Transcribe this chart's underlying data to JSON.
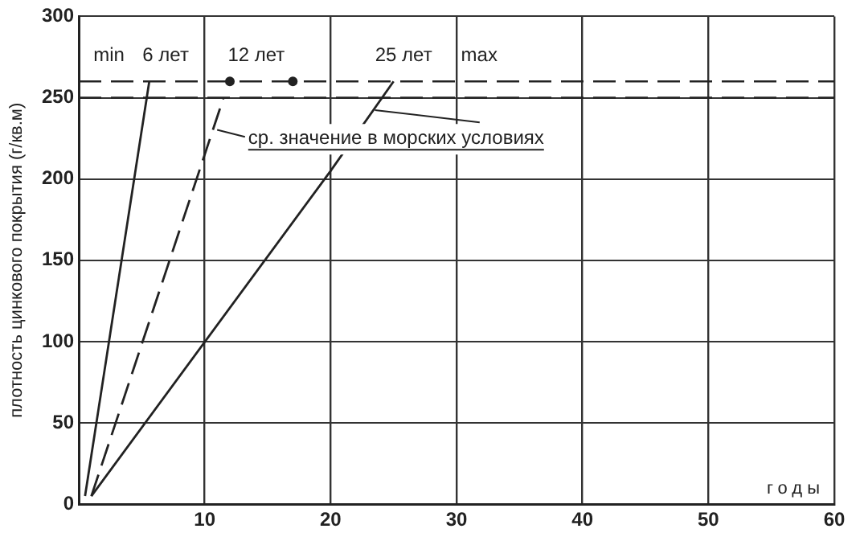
{
  "chart_data": {
    "type": "line",
    "xlabel": "годы",
    "ylabel": "плотность цинкового покрытия (г/кв.м)",
    "xlim": [
      0,
      60
    ],
    "ylim": [
      0,
      300
    ],
    "xticks": [
      {
        "value": 0,
        "label": null
      },
      10,
      20,
      30,
      40,
      50,
      60
    ],
    "yticks": [
      0,
      50,
      100,
      150,
      200,
      250,
      300
    ],
    "grid": true,
    "legend": false,
    "marker": "none",
    "series": [
      {
        "color": "#222222",
        "x": [
          0.5,
          5.6
        ],
        "values": [
          5,
          260
        ],
        "line_style": "solid"
      },
      {
        "color": "#222222",
        "x": [
          1,
          11.5
        ],
        "values": [
          5,
          250
        ],
        "line_style": "dashed"
      },
      {
        "color": "#222222",
        "x": [
          1,
          20,
          25
        ],
        "values": [
          5,
          205,
          260
        ],
        "line_style": "solid"
      },
      {
        "type": "scatter",
        "color": "#222222",
        "x": [
          12,
          17
        ],
        "values": [
          260,
          260
        ],
        "marker": "circle"
      }
    ],
    "ref_lines": [
      {
        "axis": "y",
        "value": 260,
        "line_style": "dashed",
        "color": "#222222"
      },
      {
        "axis": "y",
        "value": 250,
        "line_style": "dashed",
        "color": "#222222"
      }
    ],
    "annotations": [
      "min",
      "6 лет",
      "12 лет",
      "25 лет",
      "max",
      "ср. значение в морских условиях"
    ]
  }
}
